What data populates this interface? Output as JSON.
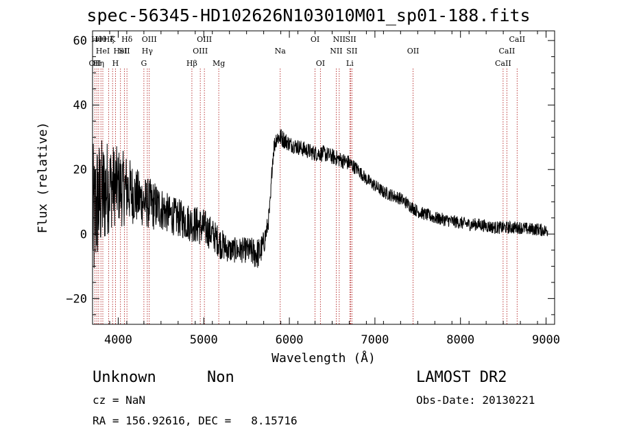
{
  "chart_data": {
    "type": "line",
    "title": "spec-56345-HD102626N103010M01_sp01-188.fits",
    "xlabel": "Wavelength (Å)",
    "ylabel": "Flux (relative)",
    "xlim": [
      3700,
      9100
    ],
    "ylim": [
      -28,
      63
    ],
    "x_ticks": [
      4000,
      5000,
      6000,
      7000,
      8000,
      9000
    ],
    "y_ticks": [
      -20,
      0,
      20,
      40,
      60
    ],
    "x_tick_labels": [
      "4000",
      "5000",
      "6000",
      "7000",
      "8000",
      "9000"
    ],
    "y_tick_labels": [
      "−20",
      "0",
      "20",
      "40",
      "60"
    ],
    "grid": false,
    "spectrum_envelope": {
      "x": [
        3700,
        3720,
        3740,
        3760,
        3780,
        3800,
        3830,
        3860,
        3900,
        3950,
        4000,
        4050,
        4100,
        4150,
        4200,
        4300,
        4400,
        4500,
        4600,
        4700,
        4800,
        4900,
        5000,
        5100,
        5200,
        5300,
        5400,
        5500,
        5600,
        5650,
        5700,
        5750,
        5780,
        5800,
        5820,
        5850,
        5900,
        6000,
        6100,
        6200,
        6300,
        6400,
        6500,
        6600,
        6700,
        6800,
        6900,
        7000,
        7100,
        7200,
        7300,
        7400,
        7500,
        7600,
        7700,
        7800,
        7900,
        8000,
        8100,
        8200,
        8300,
        8400,
        8500,
        8600,
        8700,
        8800,
        8900,
        9000
      ],
      "y": [
        5,
        4,
        8,
        10,
        10,
        12,
        12,
        14,
        15,
        15,
        15,
        14,
        14,
        13,
        12,
        10,
        9,
        8,
        6,
        5,
        4,
        3,
        2,
        0,
        -3,
        -5,
        -5,
        -5,
        -6,
        -6,
        -3,
        3,
        10,
        22,
        27,
        30,
        30,
        28,
        27,
        26,
        25,
        25,
        24,
        23,
        22,
        20,
        17,
        15,
        13,
        12,
        11,
        9,
        7,
        6,
        5,
        4.5,
        4,
        3.5,
        3,
        3,
        2.5,
        2,
        2,
        2,
        2,
        1.5,
        1.5,
        1
      ],
      "noise_amplitude": [
        25,
        22,
        22,
        20,
        20,
        18,
        18,
        16,
        14,
        13,
        12,
        12,
        11,
        10,
        9,
        8,
        8,
        7,
        6,
        6,
        6,
        6,
        6,
        5,
        5,
        4,
        4,
        4,
        5,
        5,
        4,
        3,
        3,
        3,
        3,
        3,
        3,
        2.5,
        2.5,
        2.5,
        2.5,
        2.5,
        2.5,
        2.5,
        2.5,
        2,
        2,
        2,
        2,
        2,
        2,
        2,
        2,
        2,
        2,
        2,
        2,
        2,
        2,
        2,
        2,
        2,
        2,
        2,
        2,
        2,
        2,
        2
      ]
    },
    "line_markers": [
      {
        "wavelength": 3727,
        "label": "OII",
        "row": 2
      },
      {
        "wavelength": 3750,
        "label": "Hθ",
        "row": 0
      },
      {
        "wavelength": 3771,
        "label": "Hη",
        "row": 2
      },
      {
        "wavelength": 3798,
        "label": "Hθ",
        "row": 0
      },
      {
        "wavelength": 3820,
        "label": "HeI",
        "row": 1
      },
      {
        "wavelength": 3889,
        "label": "Hζ",
        "row": 0
      },
      {
        "wavelength": 3934,
        "label": "K",
        "row": 0
      },
      {
        "wavelength": 3968,
        "label": "H",
        "row": 2
      },
      {
        "wavelength": 4026,
        "label": "HeI",
        "row": 1
      },
      {
        "wavelength": 4072,
        "label": "SII",
        "row": 1
      },
      {
        "wavelength": 4102,
        "label": "Hδ",
        "row": 0
      },
      {
        "wavelength": 4300,
        "label": "G",
        "row": 2
      },
      {
        "wavelength": 4340,
        "label": "Hγ",
        "row": 1
      },
      {
        "wavelength": 4363,
        "label": "OIII",
        "row": 0
      },
      {
        "wavelength": 4861,
        "label": "Hβ",
        "row": 2
      },
      {
        "wavelength": 4959,
        "label": "OIII",
        "row": 1
      },
      {
        "wavelength": 5007,
        "label": "OIII",
        "row": 0
      },
      {
        "wavelength": 5175,
        "label": "Mg",
        "row": 2
      },
      {
        "wavelength": 5893,
        "label": "Na",
        "row": 1
      },
      {
        "wavelength": 6300,
        "label": "OI",
        "row": 0
      },
      {
        "wavelength": 6363,
        "label": "OI",
        "row": 2
      },
      {
        "wavelength": 6548,
        "label": "NII",
        "row": 1
      },
      {
        "wavelength": 6583,
        "label": "NII",
        "row": 0
      },
      {
        "wavelength": 6717,
        "label": "SII",
        "row": 0
      },
      {
        "wavelength": 6707,
        "label": "Li",
        "row": 2
      },
      {
        "wavelength": 6731,
        "label": "SII",
        "row": 1
      },
      {
        "wavelength": 7446,
        "label": "OII",
        "row": 1
      },
      {
        "wavelength": 8498,
        "label": "CaII",
        "row": 2
      },
      {
        "wavelength": 8542,
        "label": "CaII",
        "row": 1
      },
      {
        "wavelength": 8662,
        "label": "CaII",
        "row": 0
      }
    ]
  },
  "info": {
    "class": "Unknown",
    "subclass": "Non",
    "survey": "LAMOST DR2",
    "cz": "cz = NaN",
    "obs_date": "Obs-Date: 20130221",
    "coords": "RA = 156.92616, DEC =   8.15716"
  },
  "colors": {
    "spectrum": "#000000",
    "line_marker": "#b22222",
    "axes": "#000000",
    "background": "#ffffff"
  }
}
